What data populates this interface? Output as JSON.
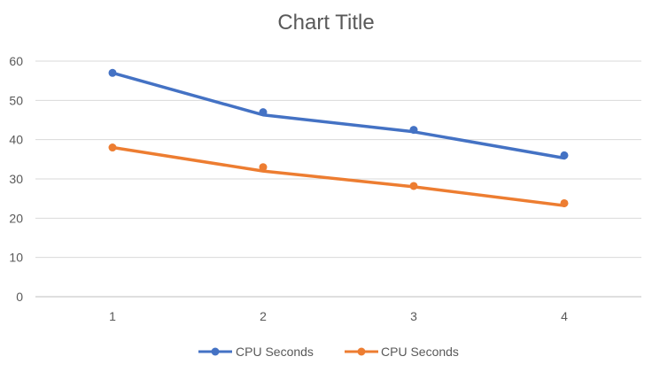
{
  "chart_data": {
    "type": "line",
    "title": "Chart Title",
    "xlabel": "",
    "ylabel": "",
    "categories": [
      "1",
      "2",
      "3",
      "4"
    ],
    "ylim": [
      0,
      60
    ],
    "yticks": [
      0,
      10,
      20,
      30,
      40,
      50,
      60
    ],
    "grid": true,
    "legend_position": "bottom",
    "series": [
      {
        "name": "CPU Seconds",
        "color": "#4472C4",
        "points": [
          57,
          47,
          42.5,
          36
        ],
        "trendline": [
          57,
          46.3,
          42,
          35.3
        ]
      },
      {
        "name": "CPU Seconds",
        "color": "#ED7D31",
        "points": [
          38,
          33,
          28.2,
          23.8
        ],
        "trendline": [
          38,
          32,
          28,
          23.2
        ]
      }
    ]
  }
}
